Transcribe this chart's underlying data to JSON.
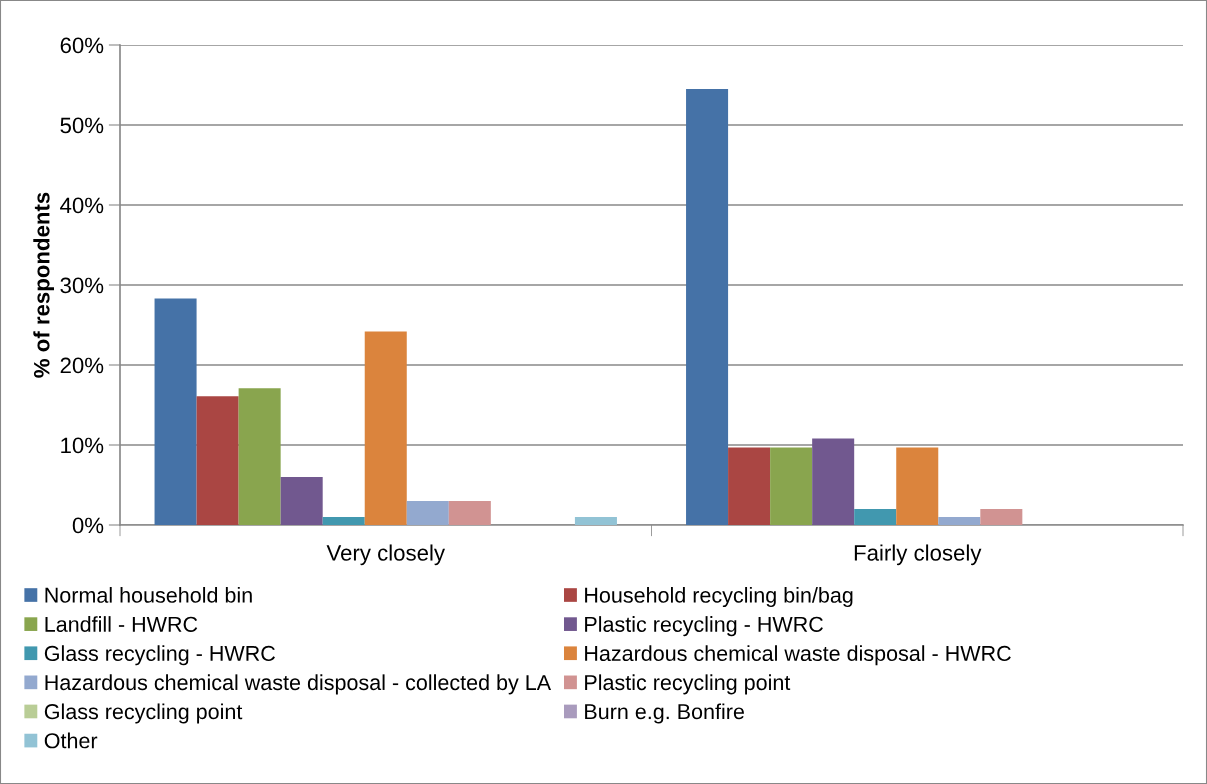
{
  "chart_data": {
    "type": "bar",
    "ylabel": "% of respondents",
    "categories": [
      "Very closely",
      "Fairly closely"
    ],
    "series": [
      {
        "name": "Normal household bin",
        "color": "#4572a7",
        "values": [
          28.3,
          54.5
        ]
      },
      {
        "name": "Household recycling bin/bag",
        "color": "#aa4643",
        "values": [
          16.1,
          9.7
        ]
      },
      {
        "name": "Landfill - HWRC",
        "color": "#89a54e",
        "values": [
          17.1,
          9.7
        ]
      },
      {
        "name": "Plastic recycling - HWRC",
        "color": "#71588f",
        "values": [
          6.0,
          10.8
        ]
      },
      {
        "name": "Glass recycling - HWRC",
        "color": "#4198af",
        "values": [
          1.0,
          2.0
        ]
      },
      {
        "name": "Hazardous chemical waste disposal - HWRC",
        "color": "#db843d",
        "values": [
          24.2,
          9.7
        ]
      },
      {
        "name": "Hazardous chemical waste disposal - collected by LA",
        "color": "#93a9cf",
        "values": [
          3.0,
          1.0
        ]
      },
      {
        "name": "Plastic recycling point",
        "color": "#d19392",
        "values": [
          3.0,
          2.0
        ]
      },
      {
        "name": "Glass recycling point",
        "color": "#b9cd96",
        "values": [
          0,
          0
        ]
      },
      {
        "name": "Burn e.g. Bonfire",
        "color": "#a99bbd",
        "values": [
          0,
          0
        ]
      },
      {
        "name": "Other",
        "color": "#92c3d5",
        "values": [
          1.0,
          0
        ]
      }
    ],
    "ylim": [
      0,
      60
    ],
    "yticks": [
      {
        "value": 0,
        "label": "0%"
      },
      {
        "value": 10,
        "label": "10%"
      },
      {
        "value": 20,
        "label": "20%"
      },
      {
        "value": 30,
        "label": "30%"
      },
      {
        "value": 40,
        "label": "40%"
      },
      {
        "value": 50,
        "label": "50%"
      },
      {
        "value": 60,
        "label": "60%"
      }
    ],
    "grid": "y",
    "legend": "bottom"
  }
}
